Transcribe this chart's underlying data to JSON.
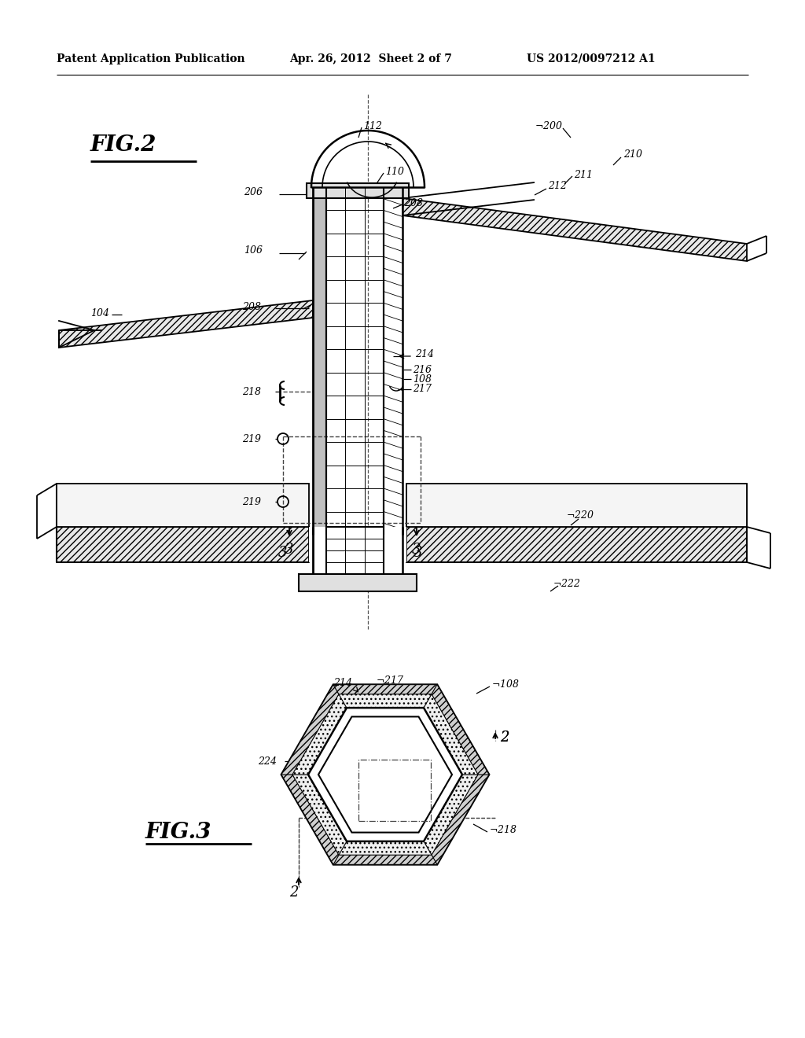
{
  "bg_color": "#ffffff",
  "header_left": "Patent Application Publication",
  "header_mid": "Apr. 26, 2012  Sheet 2 of 7",
  "header_right": "US 2012/0097212 A1",
  "fig2_label": "FIG.2",
  "fig3_label": "FIG.3"
}
